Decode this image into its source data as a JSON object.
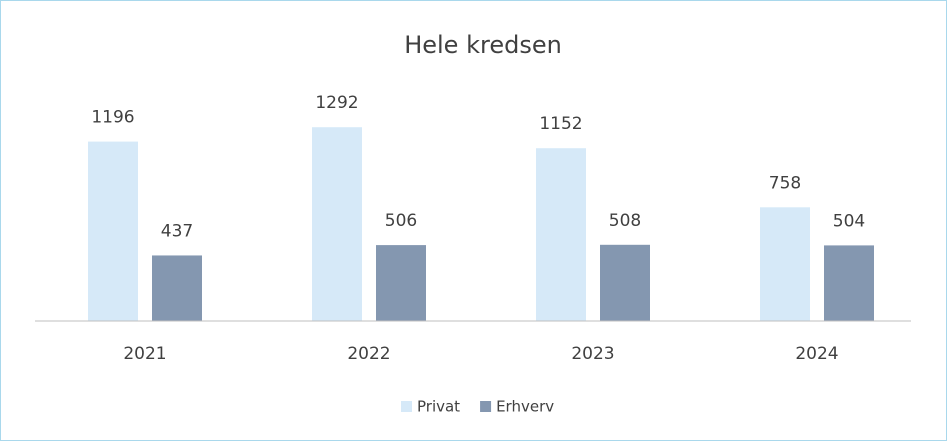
{
  "chart_data": {
    "type": "bar",
    "title": "Hele kredsen",
    "categories": [
      "2021",
      "2022",
      "2023",
      "2024"
    ],
    "series": [
      {
        "name": "Privat",
        "color": "#d6e9f8",
        "values": [
          1196,
          1292,
          1152,
          758
        ]
      },
      {
        "name": "Erhverv",
        "color": "#8497b0",
        "values": [
          437,
          506,
          508,
          504
        ]
      }
    ],
    "ylim": [
      0,
      1400
    ],
    "legend": "bottom"
  }
}
